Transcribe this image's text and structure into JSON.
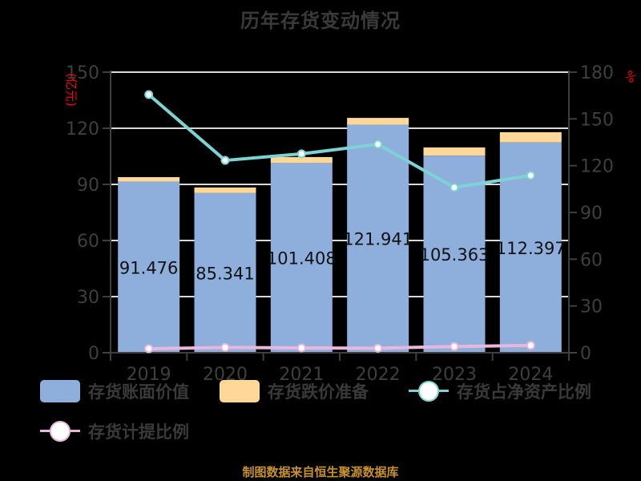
{
  "title": "历年存货变动情况",
  "source_note": "制图数据来自恒生聚源数据库",
  "axes": {
    "left_unit": "(亿元)",
    "right_unit": "%",
    "left_ticks": [
      "0",
      "30",
      "60",
      "90",
      "120",
      "150"
    ],
    "right_ticks": [
      "0",
      "30",
      "60",
      "90",
      "120",
      "150",
      "180"
    ]
  },
  "colors": {
    "book_value": "#8eaedc",
    "impairment": "#ffd898",
    "net_asset_ratio": "#7dd3d3",
    "provision_ratio": "#e8b8dc",
    "grid": "#d8d8d8",
    "axis": "#3f3f3f"
  },
  "legend": [
    {
      "label": "存货账面价值",
      "type": "box",
      "color": "#8eaedc"
    },
    {
      "label": "存货跌价准备",
      "type": "box",
      "color": "#ffd898"
    },
    {
      "label": "存货占净资产比例",
      "type": "line",
      "color": "#7dd3d3"
    },
    {
      "label": "存货计提比例",
      "type": "line",
      "color": "#e8b8dc"
    }
  ],
  "chart_data": {
    "type": "bar",
    "title": "历年存货变动情况",
    "xlabel": "",
    "ylabel": "(亿元)",
    "y2label": "%",
    "categories": [
      "2019",
      "2020",
      "2021",
      "2022",
      "2023",
      "2024"
    ],
    "ylim": [
      0,
      150
    ],
    "y2lim": [
      0,
      180
    ],
    "grid": true,
    "legend_position": "bottom",
    "series": [
      {
        "name": "存货账面价值",
        "type": "bar",
        "stack": "inv",
        "axis": "left",
        "values": [
          91.476,
          85.341,
          101.408,
          121.941,
          105.363,
          112.397
        ],
        "labels": [
          "91.476",
          "85.341",
          "101.408",
          "121.941",
          "105.363",
          "112.397"
        ]
      },
      {
        "name": "存货跌价准备",
        "type": "bar",
        "stack": "inv",
        "axis": "left",
        "values": [
          2.4,
          3.0,
          3.2,
          3.6,
          4.4,
          5.5
        ]
      },
      {
        "name": "存货占净资产比例",
        "type": "line",
        "axis": "right",
        "values": [
          165.6,
          123.4,
          127.6,
          133.7,
          106.0,
          113.7
        ]
      },
      {
        "name": "存货计提比例",
        "type": "line",
        "axis": "right",
        "values": [
          2.6,
          3.4,
          3.1,
          2.9,
          4.0,
          4.7
        ]
      }
    ]
  }
}
